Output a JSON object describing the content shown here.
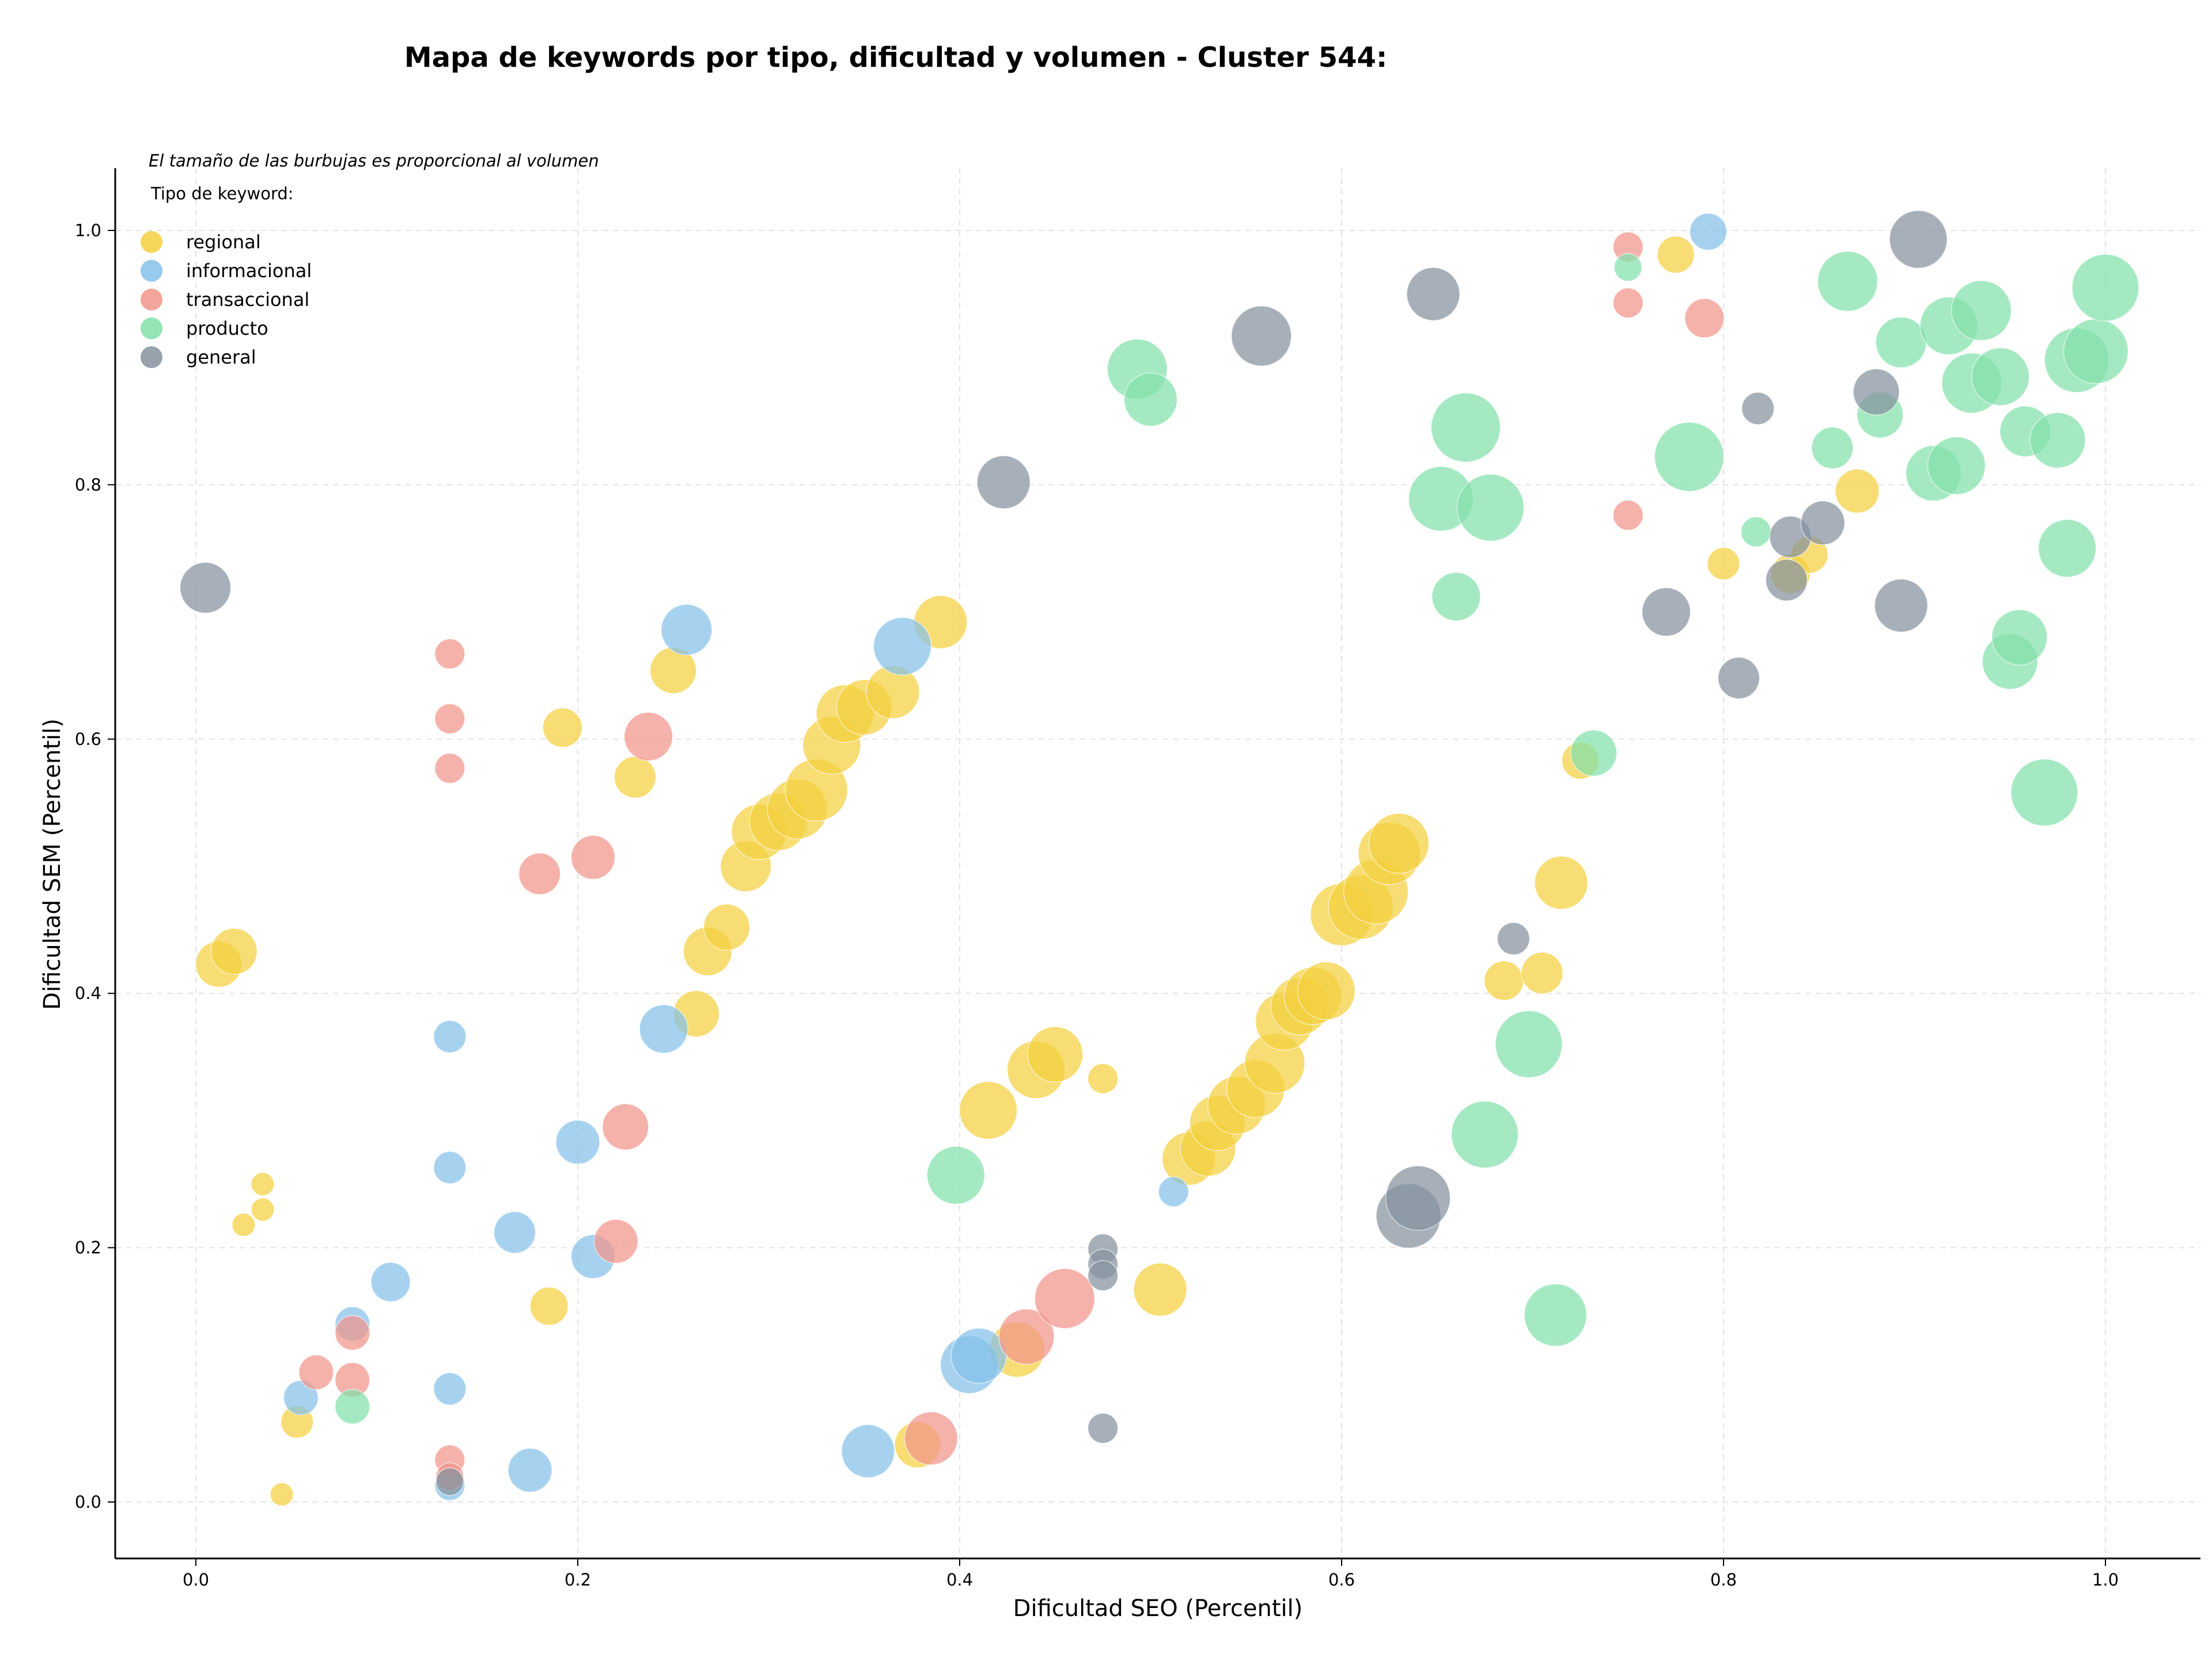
{
  "chart_data": {
    "type": "scatter",
    "title": "Mapa de keywords por tipo, dificultad y volumen - Cluster 544:",
    "xlabel": "Dificultad SEO (Percentil)",
    "ylabel": "Dificultad SEM (Percentil)",
    "xlim": [
      -0.04,
      1.05
    ],
    "ylim": [
      -0.04,
      1.05
    ],
    "xticks": [
      "0.0",
      "0.2",
      "0.4",
      "0.6",
      "0.8",
      "1.0"
    ],
    "yticks": [
      "0.0",
      "0.2",
      "0.4",
      "0.6",
      "0.8",
      "1.0"
    ],
    "xtick_values": [
      0,
      0.2,
      0.4,
      0.6,
      0.8,
      1.0
    ],
    "ytick_values": [
      0,
      0.2,
      0.4,
      0.6,
      0.8,
      1.0
    ],
    "grid": true,
    "annotation": "El tamaño de las burbujas es proporcional al volumen",
    "legend_title": "Tipo de keyword:",
    "legend_position": "top-left",
    "series": [
      {
        "name": "regional",
        "color": "#F4D03F",
        "points": [
          [
            0.012,
            0.423,
            40
          ],
          [
            0.02,
            0.433,
            40
          ],
          [
            0.035,
            0.25,
            20
          ],
          [
            0.035,
            0.23,
            20
          ],
          [
            0.025,
            0.218,
            20
          ],
          [
            0.053,
            0.063,
            28
          ],
          [
            0.045,
            0.006,
            20
          ],
          [
            0.185,
            0.154,
            33
          ],
          [
            0.192,
            0.609,
            34
          ],
          [
            0.23,
            0.57,
            36
          ],
          [
            0.25,
            0.654,
            40
          ],
          [
            0.262,
            0.384,
            40
          ],
          [
            0.268,
            0.433,
            42
          ],
          [
            0.278,
            0.452,
            40
          ],
          [
            0.288,
            0.5,
            44
          ],
          [
            0.295,
            0.527,
            48
          ],
          [
            0.305,
            0.535,
            50
          ],
          [
            0.315,
            0.545,
            52
          ],
          [
            0.325,
            0.56,
            54
          ],
          [
            0.333,
            0.595,
            50
          ],
          [
            0.34,
            0.62,
            50
          ],
          [
            0.35,
            0.625,
            48
          ],
          [
            0.365,
            0.637,
            46
          ],
          [
            0.39,
            0.692,
            46
          ],
          [
            0.378,
            0.045,
            40
          ],
          [
            0.415,
            0.308,
            50
          ],
          [
            0.43,
            0.12,
            48
          ],
          [
            0.44,
            0.34,
            50
          ],
          [
            0.45,
            0.352,
            48
          ],
          [
            0.475,
            0.333,
            26
          ],
          [
            0.505,
            0.167,
            46
          ],
          [
            0.52,
            0.27,
            46
          ],
          [
            0.53,
            0.278,
            48
          ],
          [
            0.535,
            0.298,
            48
          ],
          [
            0.545,
            0.312,
            50
          ],
          [
            0.555,
            0.325,
            50
          ],
          [
            0.565,
            0.345,
            52
          ],
          [
            0.57,
            0.378,
            50
          ],
          [
            0.578,
            0.39,
            50
          ],
          [
            0.585,
            0.398,
            50
          ],
          [
            0.592,
            0.402,
            50
          ],
          [
            0.6,
            0.462,
            54
          ],
          [
            0.61,
            0.468,
            56
          ],
          [
            0.618,
            0.48,
            56
          ],
          [
            0.625,
            0.51,
            54
          ],
          [
            0.63,
            0.518,
            52
          ],
          [
            0.685,
            0.41,
            34
          ],
          [
            0.705,
            0.416,
            36
          ],
          [
            0.715,
            0.487,
            46
          ],
          [
            0.725,
            0.583,
            32
          ],
          [
            0.775,
            0.981,
            32
          ],
          [
            0.8,
            0.738,
            28
          ],
          [
            0.835,
            0.73,
            34
          ],
          [
            0.845,
            0.745,
            32
          ],
          [
            0.87,
            0.795,
            38
          ]
        ]
      },
      {
        "name": "informacional",
        "color": "#85C1E9",
        "points": [
          [
            0.055,
            0.082,
            30
          ],
          [
            0.082,
            0.14,
            30
          ],
          [
            0.102,
            0.173,
            34
          ],
          [
            0.133,
            0.366,
            28
          ],
          [
            0.133,
            0.263,
            28
          ],
          [
            0.133,
            0.089,
            28
          ],
          [
            0.133,
            0.013,
            26
          ],
          [
            0.167,
            0.212,
            36
          ],
          [
            0.175,
            0.025,
            38
          ],
          [
            0.2,
            0.283,
            38
          ],
          [
            0.208,
            0.193,
            38
          ],
          [
            0.245,
            0.372,
            42
          ],
          [
            0.257,
            0.686,
            44
          ],
          [
            0.37,
            0.673,
            50
          ],
          [
            0.352,
            0.04,
            46
          ],
          [
            0.405,
            0.108,
            50
          ],
          [
            0.41,
            0.115,
            48
          ],
          [
            0.512,
            0.244,
            26
          ],
          [
            0.792,
            0.999,
            32
          ]
        ]
      },
      {
        "name": "transaccional",
        "color": "#F1948A",
        "points": [
          [
            0.063,
            0.102,
            30
          ],
          [
            0.082,
            0.133,
            30
          ],
          [
            0.082,
            0.096,
            30
          ],
          [
            0.133,
            0.667,
            26
          ],
          [
            0.133,
            0.616,
            26
          ],
          [
            0.133,
            0.577,
            26
          ],
          [
            0.133,
            0.033,
            26
          ],
          [
            0.133,
            0.02,
            24
          ],
          [
            0.18,
            0.494,
            36
          ],
          [
            0.208,
            0.507,
            38
          ],
          [
            0.225,
            0.295,
            40
          ],
          [
            0.22,
            0.205,
            38
          ],
          [
            0.237,
            0.602,
            42
          ],
          [
            0.385,
            0.05,
            46
          ],
          [
            0.435,
            0.13,
            48
          ],
          [
            0.455,
            0.16,
            52
          ],
          [
            0.75,
            0.987,
            26
          ],
          [
            0.75,
            0.943,
            26
          ],
          [
            0.75,
            0.776,
            26
          ],
          [
            0.79,
            0.931,
            34
          ]
        ]
      },
      {
        "name": "producto",
        "color": "#82E0AA",
        "points": [
          [
            0.082,
            0.075,
            30
          ],
          [
            0.398,
            0.257,
            50
          ],
          [
            0.493,
            0.891,
            52
          ],
          [
            0.5,
            0.867,
            46
          ],
          [
            0.652,
            0.789,
            56
          ],
          [
            0.66,
            0.712,
            42
          ],
          [
            0.665,
            0.845,
            60
          ],
          [
            0.675,
            0.289,
            58
          ],
          [
            0.678,
            0.782,
            58
          ],
          [
            0.698,
            0.36,
            58
          ],
          [
            0.712,
            0.147,
            54
          ],
          [
            0.732,
            0.589,
            40
          ],
          [
            0.75,
            0.971,
            24
          ],
          [
            0.782,
            0.822,
            60
          ],
          [
            0.817,
            0.763,
            26
          ],
          [
            0.857,
            0.829,
            36
          ],
          [
            0.865,
            0.96,
            52
          ],
          [
            0.882,
            0.855,
            40
          ],
          [
            0.893,
            0.912,
            44
          ],
          [
            0.91,
            0.809,
            48
          ],
          [
            0.918,
            0.925,
            50
          ],
          [
            0.922,
            0.815,
            50
          ],
          [
            0.93,
            0.88,
            52
          ],
          [
            0.935,
            0.937,
            52
          ],
          [
            0.945,
            0.885,
            50
          ],
          [
            0.95,
            0.661,
            48
          ],
          [
            0.955,
            0.68,
            48
          ],
          [
            0.958,
            0.842,
            44
          ],
          [
            0.975,
            0.835,
            48
          ],
          [
            0.968,
            0.558,
            58
          ],
          [
            0.98,
            0.75,
            50
          ],
          [
            0.985,
            0.898,
            56
          ],
          [
            0.995,
            0.905,
            56
          ],
          [
            1.0,
            0.955,
            58
          ]
        ]
      },
      {
        "name": "general",
        "color": "#85929E",
        "points": [
          [
            0.005,
            0.719,
            44
          ],
          [
            0.133,
            0.016,
            24
          ],
          [
            0.423,
            0.802,
            46
          ],
          [
            0.475,
            0.199,
            26
          ],
          [
            0.475,
            0.187,
            26
          ],
          [
            0.475,
            0.178,
            26
          ],
          [
            0.475,
            0.058,
            26
          ],
          [
            0.558,
            0.917,
            52
          ],
          [
            0.635,
            0.225,
            56
          ],
          [
            0.64,
            0.239,
            56
          ],
          [
            0.648,
            0.95,
            46
          ],
          [
            0.69,
            0.443,
            28
          ],
          [
            0.77,
            0.7,
            42
          ],
          [
            0.808,
            0.648,
            36
          ],
          [
            0.818,
            0.86,
            28
          ],
          [
            0.833,
            0.725,
            36
          ],
          [
            0.835,
            0.759,
            36
          ],
          [
            0.852,
            0.77,
            38
          ],
          [
            0.88,
            0.873,
            40
          ],
          [
            0.893,
            0.705,
            46
          ],
          [
            0.902,
            0.993,
            50
          ]
        ]
      }
    ]
  }
}
